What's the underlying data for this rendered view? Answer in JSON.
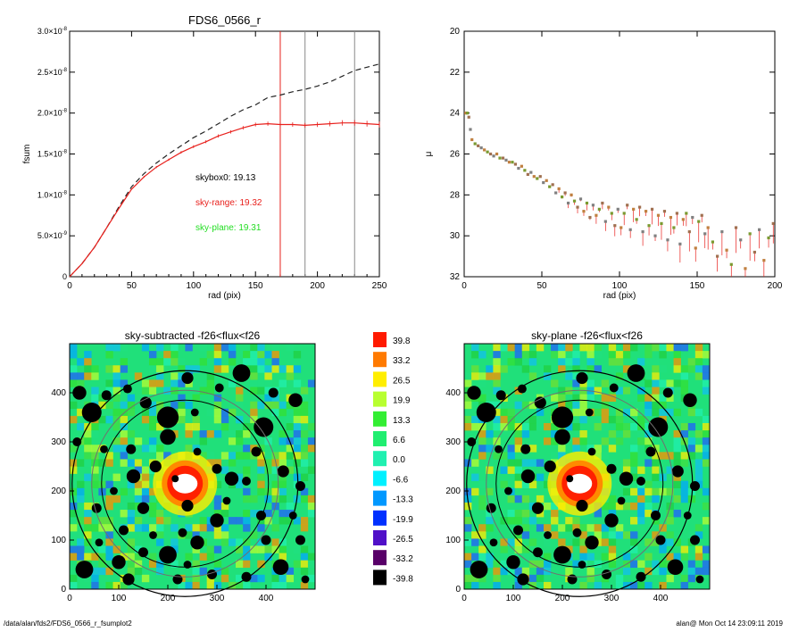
{
  "footer": {
    "path": "/data/alan/fds2/FDS6_0566_r_fsumplot2",
    "stamp": "alan@  Mon Oct 14 23:09:11 2019"
  },
  "chart_data": [
    {
      "type": "line",
      "title": "FDS6_0566_r",
      "xlabel": "rad (pix)",
      "ylabel": "fsum",
      "xlim": [
        0,
        250
      ],
      "ylim": [
        0,
        3e-08
      ],
      "xticks": [
        "0",
        "50",
        "100",
        "150",
        "200",
        "250"
      ],
      "yticks": [
        {
          "v": 0,
          "m": "0",
          "e": ""
        },
        {
          "v": 5e-09,
          "m": "5.0×10",
          "e": "-9"
        },
        {
          "v": 1e-08,
          "m": "1.0×10",
          "e": "-8"
        },
        {
          "v": 1.5e-08,
          "m": "1.5×10",
          "e": "-8"
        },
        {
          "v": 2e-08,
          "m": "2.0×10",
          "e": "-8"
        },
        {
          "v": 2.5e-08,
          "m": "2.5×10",
          "e": "-8"
        },
        {
          "v": 3e-08,
          "m": "3.0×10",
          "e": "-8"
        }
      ],
      "annotations": [
        {
          "text": "skybox0: 19.13",
          "color": "#000000"
        },
        {
          "text": "sky-range: 19.32",
          "color": "#e8201c"
        },
        {
          "text": "sky-plane: 19.31",
          "color": "#22dd22"
        }
      ],
      "vlines": [
        {
          "x": 170,
          "color": "#e8201c"
        },
        {
          "x": 190,
          "color": "#888888"
        },
        {
          "x": 230,
          "color": "#888888"
        }
      ],
      "series": [
        {
          "style": "dashed",
          "color": "#222222",
          "x": [
            0,
            10,
            20,
            30,
            40,
            50,
            60,
            70,
            80,
            90,
            100,
            110,
            120,
            130,
            140,
            150,
            160,
            170,
            180,
            190,
            200,
            210,
            220,
            230,
            240,
            250
          ],
          "y": [
            0,
            1.6e-09,
            3.6e-09,
            6e-09,
            8.6e-09,
            1.1e-08,
            1.26e-08,
            1.39e-08,
            1.5e-08,
            1.6e-08,
            1.7e-08,
            1.78e-08,
            1.87e-08,
            1.96e-08,
            2.04e-08,
            2.1e-08,
            2.19e-08,
            2.22e-08,
            2.26e-08,
            2.29e-08,
            2.33e-08,
            2.38e-08,
            2.45e-08,
            2.52e-08,
            2.56e-08,
            2.6e-08
          ]
        },
        {
          "style": "solid",
          "color": "#e8201c",
          "x": [
            0,
            10,
            20,
            30,
            40,
            50,
            60,
            70,
            80,
            90,
            100,
            110,
            120,
            130,
            140,
            150,
            160,
            170,
            180,
            190,
            200,
            210,
            220,
            230,
            240,
            250
          ],
          "y": [
            0,
            1.6e-09,
            3.6e-09,
            6e-09,
            8.4e-09,
            1.07e-08,
            1.22e-08,
            1.34e-08,
            1.43e-08,
            1.52e-08,
            1.59e-08,
            1.65e-08,
            1.72e-08,
            1.77e-08,
            1.82e-08,
            1.86e-08,
            1.87e-08,
            1.86e-08,
            1.86e-08,
            1.85e-08,
            1.86e-08,
            1.87e-08,
            1.88e-08,
            1.88e-08,
            1.87e-08,
            1.86e-08
          ]
        }
      ]
    },
    {
      "type": "scatter",
      "xlabel": "rad (pix)",
      "ylabel": "μ",
      "xlim": [
        0,
        200
      ],
      "ylim": [
        32,
        20
      ],
      "xticks": [
        "0",
        "50",
        "100",
        "150",
        "200"
      ],
      "yticks": [
        "20",
        "22",
        "24",
        "26",
        "28",
        "30",
        "32"
      ],
      "points_x": [
        1,
        2,
        3,
        4,
        5,
        7,
        9,
        11,
        13,
        15,
        17,
        19,
        21,
        23,
        25,
        27,
        29,
        31,
        33,
        35,
        37,
        39,
        41,
        43,
        45,
        47,
        49,
        51,
        53,
        55,
        57,
        59,
        61,
        63,
        65,
        67,
        69,
        71,
        73,
        75,
        77,
        79,
        81,
        83,
        85,
        87,
        89,
        91,
        93,
        95,
        97,
        99,
        101,
        103,
        105,
        107,
        109,
        111,
        113,
        115,
        117,
        119,
        121,
        123,
        125,
        127,
        129,
        131,
        133,
        135,
        137,
        139,
        141,
        143,
        145,
        147,
        149,
        151,
        153,
        155,
        157,
        160,
        163,
        166,
        169,
        172,
        175,
        178,
        181,
        184,
        187,
        190,
        193,
        196,
        199
      ],
      "points_y": [
        24.0,
        24.0,
        24.2,
        24.8,
        25.3,
        25.5,
        25.6,
        25.7,
        25.8,
        25.9,
        26.0,
        26.1,
        26.0,
        26.2,
        26.2,
        26.3,
        26.4,
        26.4,
        26.5,
        26.7,
        26.6,
        26.8,
        27.0,
        26.9,
        27.1,
        27.2,
        27.1,
        27.4,
        27.3,
        27.6,
        27.5,
        27.9,
        27.7,
        28.1,
        27.9,
        28.4,
        28.0,
        28.3,
        28.6,
        28.2,
        28.8,
        28.4,
        29.1,
        28.5,
        29.0,
        28.7,
        28.4,
        29.3,
        28.6,
        28.9,
        29.5,
        28.7,
        29.6,
        28.9,
        28.5,
        29.7,
        28.7,
        29.2,
        28.6,
        29.8,
        28.8,
        29.5,
        28.7,
        30.0,
        29.0,
        29.4,
        28.8,
        30.2,
        29.1,
        29.6,
        28.9,
        30.4,
        29.2,
        28.9,
        29.8,
        29.1,
        30.6,
        29.3,
        29.0,
        29.9,
        29.6,
        30.3,
        31.0,
        29.8,
        30.7,
        31.4,
        29.6,
        30.2,
        31.6,
        29.9,
        30.8,
        29.7,
        31.2,
        30.1,
        29.4
      ]
    },
    {
      "type": "heatmap",
      "title": "sky-subtracted -f26<flux<f26",
      "xlim": [
        0,
        500
      ],
      "ylim": [
        0,
        500
      ],
      "xticks": [
        "0",
        "100",
        "200",
        "300",
        "400"
      ],
      "yticks": [
        "0",
        "100",
        "200",
        "300",
        "400"
      ]
    },
    {
      "type": "heatmap",
      "title": "sky-plane -f26<flux<f26",
      "xlim": [
        0,
        500
      ],
      "ylim": [
        0,
        500
      ],
      "xticks": [
        "0",
        "100",
        "200",
        "300",
        "400"
      ],
      "yticks": [
        "0",
        "100",
        "200",
        "300",
        "400"
      ]
    }
  ],
  "colorbar": {
    "labels": [
      "39.8",
      "33.2",
      "26.5",
      "19.9",
      "13.3",
      "6.6",
      "0.0",
      "-6.6",
      "-13.3",
      "-19.9",
      "-26.5",
      "-33.2",
      "-39.8"
    ],
    "colors": [
      "#ff1a00",
      "#ff7a00",
      "#ffee00",
      "#b8ff30",
      "#33ee33",
      "#20ee70",
      "#20f0b0",
      "#00f0ff",
      "#0098ff",
      "#0030ff",
      "#5010c8",
      "#580068",
      "#000000"
    ]
  }
}
